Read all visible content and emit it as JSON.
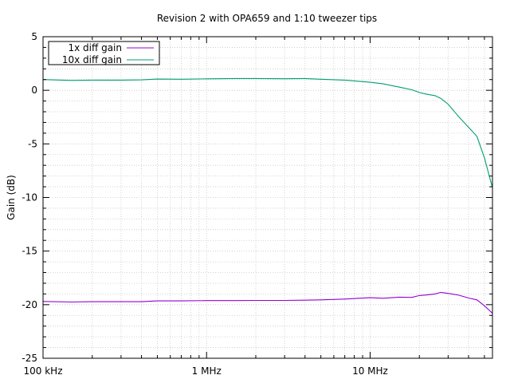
{
  "chart_data": {
    "type": "line",
    "title": "Revision 2 with OPA659 and 1:10 tweezer tips",
    "xlabel": "",
    "ylabel": "Gain (dB)",
    "xscale": "log",
    "xlim": [
      100000,
      56000000
    ],
    "ylim": [
      -25,
      5
    ],
    "x_ticks": [
      {
        "value": 100000,
        "label": "100 kHz"
      },
      {
        "value": 1000000,
        "label": "1 MHz"
      },
      {
        "value": 10000000,
        "label": "10 MHz"
      }
    ],
    "y_ticks": [
      5,
      0,
      -5,
      -10,
      -15,
      -20,
      -25
    ],
    "grid": true,
    "legend_position": "top-left",
    "x": [
      100000,
      150000,
      200000,
      300000,
      400000,
      500000,
      700000,
      1000000,
      1500000,
      2000000,
      3000000,
      4000000,
      5000000,
      7000000,
      10000000,
      12000000,
      15000000,
      18000000,
      20000000,
      22000000,
      25000000,
      27000000,
      30000000,
      35000000,
      40000000,
      45000000,
      50000000,
      56000000
    ],
    "series": [
      {
        "name": "1x diff gain",
        "color": "#9400d3",
        "values": [
          -19.7,
          -19.75,
          -19.72,
          -19.72,
          -19.72,
          -19.65,
          -19.65,
          -19.62,
          -19.62,
          -19.6,
          -19.6,
          -19.58,
          -19.55,
          -19.48,
          -19.35,
          -19.4,
          -19.3,
          -19.32,
          -19.15,
          -19.1,
          -19.0,
          -18.85,
          -18.95,
          -19.12,
          -19.38,
          -19.55,
          -20.1,
          -20.8
        ]
      },
      {
        "name": "10x diff gain",
        "color": "#009e73",
        "values": [
          1.0,
          0.92,
          0.95,
          0.95,
          0.97,
          1.05,
          1.03,
          1.07,
          1.1,
          1.1,
          1.08,
          1.1,
          1.03,
          0.95,
          0.75,
          0.6,
          0.3,
          0.05,
          -0.2,
          -0.35,
          -0.5,
          -0.75,
          -1.3,
          -2.5,
          -3.45,
          -4.3,
          -6.3,
          -9.1
        ]
      }
    ]
  }
}
